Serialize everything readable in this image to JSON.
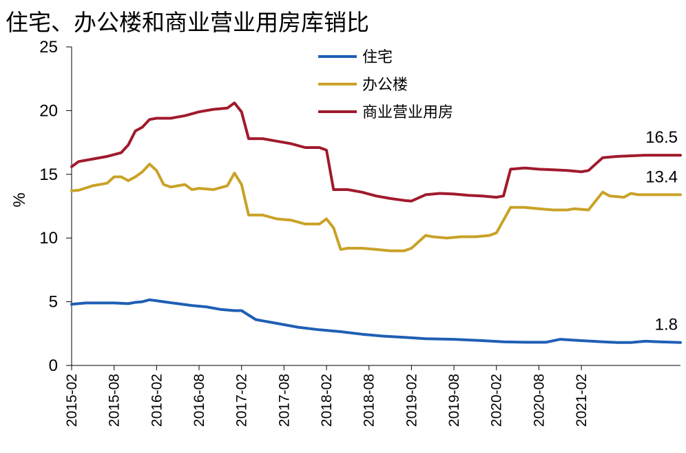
{
  "title": "住宅、办公楼和商业营业用房库销比",
  "chart_data": {
    "type": "line",
    "title": "住宅、办公楼和商业营业用房库销比",
    "ylabel": "%",
    "xlabel": "",
    "ylim": [
      0,
      25
    ],
    "yticks": [
      0,
      5,
      10,
      15,
      20,
      25
    ],
    "xticks": [
      "2015-02",
      "2015-08",
      "2016-02",
      "2016-08",
      "2017-02",
      "2017-08",
      "2018-02",
      "2018-08",
      "2019-02",
      "2019-08",
      "2020-02",
      "2020-08",
      "2021-02"
    ],
    "grid": false,
    "legend_position": "top-center",
    "series": [
      {
        "name": "住宅",
        "color": "#1f5fb4",
        "end_label": "1.8",
        "points": [
          [
            "2015-02",
            4.8
          ],
          [
            "2015-04",
            4.9
          ],
          [
            "2015-06",
            4.9
          ],
          [
            "2015-08",
            4.9
          ],
          [
            "2015-10",
            4.85
          ],
          [
            "2015-11",
            4.95
          ],
          [
            "2015-12",
            5.0
          ],
          [
            "2016-01",
            5.15
          ],
          [
            "2016-03",
            5.0
          ],
          [
            "2016-05",
            4.85
          ],
          [
            "2016-07",
            4.7
          ],
          [
            "2016-09",
            4.6
          ],
          [
            "2016-11",
            4.4
          ],
          [
            "2017-01",
            4.3
          ],
          [
            "2017-02",
            4.3
          ],
          [
            "2017-04",
            3.6
          ],
          [
            "2017-07",
            3.3
          ],
          [
            "2017-10",
            3.0
          ],
          [
            "2018-01",
            2.8
          ],
          [
            "2018-04",
            2.65
          ],
          [
            "2018-07",
            2.45
          ],
          [
            "2018-10",
            2.3
          ],
          [
            "2019-01",
            2.2
          ],
          [
            "2019-04",
            2.1
          ],
          [
            "2019-08",
            2.05
          ],
          [
            "2019-12",
            1.95
          ],
          [
            "2020-03",
            1.85
          ],
          [
            "2020-06",
            1.82
          ],
          [
            "2020-09",
            1.82
          ],
          [
            "2020-11",
            2.05
          ],
          [
            "2021-02",
            1.95
          ],
          [
            "2021-05",
            1.85
          ],
          [
            "2021-07",
            1.8
          ],
          [
            "2021-09",
            1.8
          ],
          [
            "2021-11",
            1.9
          ],
          [
            "2022-01",
            1.85
          ],
          [
            "2022-04",
            1.8
          ]
        ]
      },
      {
        "name": "办公楼",
        "color": "#c9a227",
        "end_label": "13.4",
        "points": [
          [
            "2015-02",
            13.7
          ],
          [
            "2015-03",
            13.75
          ],
          [
            "2015-05",
            14.1
          ],
          [
            "2015-07",
            14.3
          ],
          [
            "2015-08",
            14.8
          ],
          [
            "2015-09",
            14.8
          ],
          [
            "2015-10",
            14.5
          ],
          [
            "2015-11",
            14.8
          ],
          [
            "2015-12",
            15.2
          ],
          [
            "2016-01",
            15.8
          ],
          [
            "2016-02",
            15.3
          ],
          [
            "2016-03",
            14.2
          ],
          [
            "2016-04",
            14.0
          ],
          [
            "2016-06",
            14.2
          ],
          [
            "2016-07",
            13.8
          ],
          [
            "2016-08",
            13.9
          ],
          [
            "2016-10",
            13.8
          ],
          [
            "2016-12",
            14.1
          ],
          [
            "2017-01",
            15.1
          ],
          [
            "2017-02",
            14.2
          ],
          [
            "2017-03",
            11.8
          ],
          [
            "2017-05",
            11.8
          ],
          [
            "2017-07",
            11.5
          ],
          [
            "2017-09",
            11.4
          ],
          [
            "2017-11",
            11.1
          ],
          [
            "2018-01",
            11.1
          ],
          [
            "2018-02",
            11.5
          ],
          [
            "2018-03",
            10.8
          ],
          [
            "2018-04",
            9.1
          ],
          [
            "2018-05",
            9.2
          ],
          [
            "2018-07",
            9.2
          ],
          [
            "2018-09",
            9.1
          ],
          [
            "2018-11",
            9.0
          ],
          [
            "2019-01",
            9.0
          ],
          [
            "2019-02",
            9.2
          ],
          [
            "2019-04",
            10.2
          ],
          [
            "2019-05",
            10.1
          ],
          [
            "2019-07",
            10.0
          ],
          [
            "2019-09",
            10.1
          ],
          [
            "2019-11",
            10.1
          ],
          [
            "2020-01",
            10.2
          ],
          [
            "2020-02",
            10.4
          ],
          [
            "2020-04",
            12.4
          ],
          [
            "2020-06",
            12.4
          ],
          [
            "2020-08",
            12.3
          ],
          [
            "2020-10",
            12.2
          ],
          [
            "2020-12",
            12.2
          ],
          [
            "2021-01",
            12.3
          ],
          [
            "2021-03",
            12.2
          ],
          [
            "2021-05",
            13.6
          ],
          [
            "2021-06",
            13.3
          ],
          [
            "2021-08",
            13.2
          ],
          [
            "2021-09",
            13.5
          ],
          [
            "2021-10",
            13.4
          ],
          [
            "2021-11",
            13.4
          ],
          [
            "2022-04",
            13.4
          ]
        ]
      },
      {
        "name": "商业营业用房",
        "color": "#a01a2c",
        "end_label": "16.5",
        "points": [
          [
            "2015-02",
            15.6
          ],
          [
            "2015-03",
            16.0
          ],
          [
            "2015-05",
            16.2
          ],
          [
            "2015-07",
            16.4
          ],
          [
            "2015-09",
            16.7
          ],
          [
            "2015-10",
            17.3
          ],
          [
            "2015-11",
            18.4
          ],
          [
            "2015-12",
            18.7
          ],
          [
            "2016-01",
            19.3
          ],
          [
            "2016-02",
            19.4
          ],
          [
            "2016-04",
            19.4
          ],
          [
            "2016-06",
            19.6
          ],
          [
            "2016-08",
            19.9
          ],
          [
            "2016-10",
            20.1
          ],
          [
            "2016-12",
            20.2
          ],
          [
            "2017-01",
            20.6
          ],
          [
            "2017-02",
            19.9
          ],
          [
            "2017-03",
            17.8
          ],
          [
            "2017-05",
            17.8
          ],
          [
            "2017-07",
            17.6
          ],
          [
            "2017-09",
            17.4
          ],
          [
            "2017-11",
            17.1
          ],
          [
            "2018-01",
            17.1
          ],
          [
            "2018-02",
            16.9
          ],
          [
            "2018-03",
            13.8
          ],
          [
            "2018-05",
            13.8
          ],
          [
            "2018-07",
            13.6
          ],
          [
            "2018-09",
            13.3
          ],
          [
            "2018-11",
            13.1
          ],
          [
            "2019-01",
            12.95
          ],
          [
            "2019-02",
            12.9
          ],
          [
            "2019-04",
            13.4
          ],
          [
            "2019-06",
            13.5
          ],
          [
            "2019-08",
            13.45
          ],
          [
            "2019-10",
            13.35
          ],
          [
            "2019-12",
            13.3
          ],
          [
            "2020-02",
            13.2
          ],
          [
            "2020-03",
            13.3
          ],
          [
            "2020-04",
            15.4
          ],
          [
            "2020-06",
            15.5
          ],
          [
            "2020-08",
            15.4
          ],
          [
            "2020-10",
            15.35
          ],
          [
            "2020-12",
            15.3
          ],
          [
            "2021-02",
            15.2
          ],
          [
            "2021-03",
            15.3
          ],
          [
            "2021-05",
            16.3
          ],
          [
            "2021-07",
            16.4
          ],
          [
            "2021-09",
            16.45
          ],
          [
            "2021-11",
            16.5
          ],
          [
            "2022-04",
            16.5
          ]
        ]
      }
    ]
  }
}
